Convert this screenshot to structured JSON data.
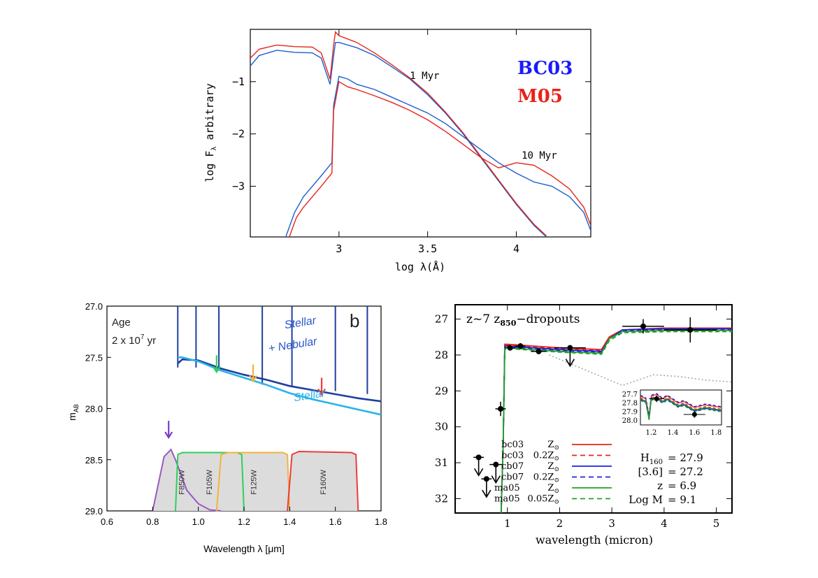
{
  "chart_data": [
    {
      "type": "line",
      "xlabel": "log λ(Å)",
      "ylabel": "log F",
      "ylabel_sub": "λ",
      "ylabel_suffix": " arbitrary",
      "xlim": [
        2.5,
        4.42
      ],
      "ylim": [
        -3.97,
        -0.0
      ],
      "x_ticks": [
        3,
        3.5,
        4
      ],
      "y_ticks": [
        -1,
        -2,
        -3
      ],
      "legend": [
        {
          "label": "BC03",
          "color": "#1a1aff"
        },
        {
          "label": "M05",
          "color": "#e8231a"
        }
      ],
      "annotations": [
        {
          "text": "1 Myr",
          "x": 3.4,
          "y": -0.95
        },
        {
          "text": "10 Myr",
          "x": 4.03,
          "y": -2.47
        }
      ],
      "series": [
        {
          "name": "BC03",
          "age": "1 Myr",
          "color": "#1a5fd0",
          "x": [
            2.5,
            2.55,
            2.65,
            2.75,
            2.85,
            2.9,
            2.95,
            2.97,
            2.98,
            3.0,
            3.1,
            3.2,
            3.3,
            3.4,
            3.5,
            3.6,
            3.7,
            3.8,
            3.9,
            4.0,
            4.1,
            4.17
          ],
          "y": [
            -0.7,
            -0.5,
            -0.4,
            -0.44,
            -0.45,
            -0.55,
            -1.05,
            -0.5,
            -0.25,
            -0.25,
            -0.35,
            -0.5,
            -0.72,
            -0.95,
            -1.25,
            -1.6,
            -2.0,
            -2.45,
            -2.9,
            -3.35,
            -3.75,
            -3.97
          ]
        },
        {
          "name": "M05",
          "age": "1 Myr",
          "color": "#e8231a",
          "x": [
            2.5,
            2.55,
            2.65,
            2.75,
            2.85,
            2.9,
            2.95,
            2.97,
            2.98,
            3.0,
            3.1,
            3.2,
            3.3,
            3.4,
            3.5,
            3.6,
            3.7,
            3.8,
            3.9,
            4.0,
            4.1,
            4.17
          ],
          "y": [
            -0.55,
            -0.38,
            -0.3,
            -0.33,
            -0.34,
            -0.45,
            -0.95,
            -0.3,
            -0.05,
            -0.12,
            -0.25,
            -0.45,
            -0.68,
            -0.93,
            -1.22,
            -1.58,
            -1.98,
            -2.43,
            -2.88,
            -3.33,
            -3.73,
            -3.95
          ]
        },
        {
          "name": "BC03",
          "age": "10 Myr",
          "color": "#1a5fd0",
          "x": [
            2.7,
            2.75,
            2.8,
            2.9,
            2.96,
            2.97,
            3.0,
            3.05,
            3.1,
            3.2,
            3.3,
            3.4,
            3.5,
            3.6,
            3.7,
            3.8,
            3.9,
            4.0,
            4.1,
            4.2,
            4.3,
            4.38,
            4.42
          ],
          "y": [
            -3.97,
            -3.5,
            -3.2,
            -2.8,
            -2.55,
            -1.45,
            -0.9,
            -0.95,
            -1.05,
            -1.15,
            -1.3,
            -1.45,
            -1.6,
            -1.8,
            -2.05,
            -2.3,
            -2.55,
            -2.75,
            -2.92,
            -3.0,
            -3.2,
            -3.5,
            -3.85
          ]
        },
        {
          "name": "M05",
          "age": "10 Myr",
          "color": "#e8231a",
          "x": [
            2.72,
            2.76,
            2.8,
            2.9,
            2.96,
            2.97,
            3.0,
            3.05,
            3.1,
            3.2,
            3.3,
            3.4,
            3.5,
            3.6,
            3.7,
            3.8,
            3.85,
            3.9,
            4.0,
            4.1,
            4.2,
            4.3,
            4.38,
            4.42
          ],
          "y": [
            -3.97,
            -3.6,
            -3.4,
            -3.0,
            -2.75,
            -1.55,
            -1.0,
            -1.1,
            -1.15,
            -1.27,
            -1.4,
            -1.55,
            -1.73,
            -1.95,
            -2.2,
            -2.45,
            -2.55,
            -2.65,
            -2.55,
            -2.6,
            -2.8,
            -3.05,
            -3.4,
            -3.75
          ]
        }
      ]
    },
    {
      "type": "line",
      "xlabel": "Wavelength λ [μm]",
      "ylabel": "m",
      "ylabel_sub": "AB",
      "panel_label": "b",
      "text_lines": [
        "Age",
        "2 x 10",
        "7",
        " yr"
      ],
      "xlim": [
        0.6,
        1.8
      ],
      "ylim": [
        27.0,
        29.0
      ],
      "x_ticks": [
        0.6,
        0.8,
        1.0,
        1.2,
        1.4,
        1.6,
        1.8
      ],
      "y_ticks": [
        27.0,
        27.5,
        28.0,
        28.5,
        29.0
      ],
      "curve_labels": [
        {
          "text": "Stellar",
          "x": 1.38,
          "y": 27.22,
          "color": "#2a55c8"
        },
        {
          "text": "+ Nebular",
          "x": 1.31,
          "y": 27.45,
          "color": "#2a55c8"
        },
        {
          "text": "Stellar",
          "x": 1.42,
          "y": 27.93,
          "color": "#2ab3e8"
        }
      ],
      "series": [
        {
          "name": "Stellar + Nebular",
          "color": "#1f3f9e",
          "x": [
            0.91,
            0.93,
            1.0,
            1.1,
            1.2,
            1.3,
            1.4,
            1.5,
            1.6,
            1.7,
            1.8
          ],
          "y": [
            27.56,
            27.52,
            27.53,
            27.61,
            27.67,
            27.72,
            27.78,
            27.82,
            27.86,
            27.9,
            27.93
          ]
        },
        {
          "name": "Stellar",
          "color": "#2ab3e8",
          "x": [
            0.91,
            0.93,
            1.0,
            1.1,
            1.2,
            1.3,
            1.4,
            1.5,
            1.6,
            1.7,
            1.8
          ],
          "y": [
            27.5,
            27.5,
            27.54,
            27.63,
            27.7,
            27.77,
            27.85,
            27.91,
            27.96,
            28.01,
            28.06
          ]
        }
      ],
      "emission_lines_x": [
        0.91,
        0.99,
        1.09,
        1.28,
        1.41,
        1.6,
        1.74
      ],
      "filters": [
        {
          "label": "F850W",
          "color": "#9b59c6",
          "x": [
            0.8,
            0.85,
            0.88,
            0.9,
            0.95,
            1.0,
            1.05,
            1.1
          ],
          "y": [
            29.0,
            28.47,
            28.4,
            28.5,
            28.8,
            28.93,
            28.99,
            29.0
          ]
        },
        {
          "label": "F105W",
          "color": "#2ed05a",
          "x": [
            0.9,
            0.91,
            0.93,
            1.17,
            1.19,
            1.2
          ],
          "y": [
            29.0,
            28.45,
            28.43,
            28.43,
            28.45,
            29.0
          ]
        },
        {
          "label": "F125W",
          "color": "#f2b33d",
          "x": [
            1.08,
            1.1,
            1.13,
            1.37,
            1.39,
            1.4
          ],
          "y": [
            29.0,
            28.45,
            28.43,
            28.43,
            28.45,
            29.0
          ]
        },
        {
          "label": "F160W",
          "color": "#ee3b3b",
          "x": [
            1.39,
            1.41,
            1.44,
            1.67,
            1.69,
            1.7
          ],
          "y": [
            29.0,
            28.45,
            28.42,
            28.43,
            28.45,
            29.0
          ]
        }
      ],
      "arrows": [
        {
          "x": 0.87,
          "y": 28.27,
          "color": "#7c3cc8"
        },
        {
          "x": 1.08,
          "y": 27.63,
          "color": "#2ed05a"
        },
        {
          "x": 1.24,
          "y": 27.72,
          "color": "#f2b33d"
        },
        {
          "x": 1.54,
          "y": 27.85,
          "color": "#ee3b3b"
        }
      ]
    },
    {
      "type": "scatter",
      "title": "z~7 z",
      "title_sub": "850",
      "title_suffix": "−dropouts",
      "xlabel": "wavelength (micron)",
      "xlim": [
        0,
        5.3
      ],
      "ylim": [
        26.6,
        32.4
      ],
      "x_ticks": [
        1,
        2,
        3,
        4,
        5
      ],
      "y_ticks": [
        27,
        28,
        29,
        30,
        31,
        32
      ],
      "points": [
        {
          "x": 0.45,
          "y": 30.85,
          "xerr": 0.1,
          "upper_limit": true
        },
        {
          "x": 0.6,
          "y": 31.45,
          "xerr": 0.1,
          "upper_limit": true
        },
        {
          "x": 0.78,
          "y": 31.05,
          "xerr": 0.12,
          "upper_limit": true
        },
        {
          "x": 0.87,
          "y": 29.5,
          "xerr": 0.1,
          "yerr": 0.2
        },
        {
          "x": 1.05,
          "y": 27.8,
          "xerr": 0.1,
          "yerr": 0.08
        },
        {
          "x": 1.25,
          "y": 27.75,
          "xerr": 0.1,
          "yerr": 0.08
        },
        {
          "x": 1.6,
          "y": 27.9,
          "xerr": 0.15,
          "yerr": 0.08
        },
        {
          "x": 2.2,
          "y": 27.8,
          "xerr": 0.3,
          "upper_limit": true
        },
        {
          "x": 3.6,
          "y": 27.2,
          "xerr": 0.4,
          "yerr": 0.2
        },
        {
          "x": 4.5,
          "y": 27.3,
          "xerr": 0.5,
          "yerr": 0.35
        }
      ],
      "series": [
        {
          "name": "bc03 Z",
          "color": "#e8231a",
          "dash": false,
          "x": [
            0.88,
            0.92,
            0.95,
            1.0,
            2.0,
            2.8,
            2.95,
            3.2,
            4.0,
            5.3
          ],
          "y": [
            32.4,
            30.5,
            27.7,
            27.7,
            27.8,
            27.85,
            27.5,
            27.3,
            27.25,
            27.25
          ]
        },
        {
          "name": "bc03 0.2Z",
          "color": "#e8231a",
          "dash": true,
          "x": [
            0.88,
            0.92,
            0.95,
            1.0,
            2.0,
            2.8,
            2.95,
            3.2,
            4.0,
            5.3
          ],
          "y": [
            32.4,
            30.5,
            27.75,
            27.72,
            27.82,
            27.88,
            27.5,
            27.3,
            27.28,
            27.28
          ]
        },
        {
          "name": "cb07 Z",
          "color": "#2020e0",
          "dash": false,
          "x": [
            0.88,
            0.92,
            0.95,
            1.0,
            2.0,
            2.8,
            2.95,
            3.2,
            4.0,
            5.3
          ],
          "y": [
            32.4,
            30.5,
            27.75,
            27.75,
            27.85,
            27.9,
            27.55,
            27.3,
            27.27,
            27.27
          ]
        },
        {
          "name": "cb07 0.2Z",
          "color": "#2020e0",
          "dash": true,
          "x": [
            0.88,
            0.92,
            0.95,
            1.0,
            2.0,
            2.8,
            2.95,
            3.2,
            4.0,
            5.3
          ],
          "y": [
            32.4,
            30.5,
            27.8,
            27.78,
            27.88,
            27.92,
            27.55,
            27.32,
            27.3,
            27.3
          ]
        },
        {
          "name": "ma05 Z",
          "color": "#22a02a",
          "dash": false,
          "x": [
            0.88,
            0.92,
            0.95,
            1.0,
            2.0,
            2.8,
            2.95,
            3.2,
            4.0,
            5.3
          ],
          "y": [
            32.4,
            30.5,
            27.8,
            27.8,
            27.9,
            27.95,
            27.55,
            27.35,
            27.32,
            27.32
          ]
        },
        {
          "name": "ma05 0.05Z",
          "color": "#22a02a",
          "dash": true,
          "x": [
            0.88,
            0.92,
            0.95,
            1.0,
            2.0,
            2.8,
            2.95,
            3.2,
            4.0,
            5.3
          ],
          "y": [
            32.4,
            30.5,
            27.85,
            27.82,
            27.92,
            27.98,
            27.6,
            27.38,
            27.35,
            27.35
          ]
        },
        {
          "name": "",
          "color": "#aaaaaa",
          "dash": "dot",
          "x": [
            1.8,
            2.3,
            2.8,
            3.2,
            3.8,
            4.3,
            4.8,
            5.3
          ],
          "y": [
            28.0,
            28.3,
            28.6,
            28.85,
            28.55,
            28.6,
            28.7,
            28.75
          ]
        }
      ],
      "legend_entries": [
        {
          "model": "bc03",
          "z": "Z",
          "sub": "⊙",
          "color": "#e8231a",
          "dash": false
        },
        {
          "model": "bc03",
          "z": "0.2Z",
          "sub": "⊙",
          "color": "#e8231a",
          "dash": true
        },
        {
          "model": "cb07",
          "z": "Z",
          "sub": "⊙",
          "color": "#2020e0",
          "dash": false
        },
        {
          "model": "cb07",
          "z": "0.2Z",
          "sub": "⊙",
          "color": "#2020e0",
          "dash": true
        },
        {
          "model": "ma05",
          "z": "Z",
          "sub": "⊙",
          "color": "#22a02a",
          "dash": false
        },
        {
          "model": "ma05",
          "z": "0.05Z",
          "sub": "⊙",
          "color": "#22a02a",
          "dash": true
        }
      ],
      "stats": [
        {
          "label": "H",
          "sub": "160",
          "value": "= 27.9"
        },
        {
          "label": "[3.6]",
          "sub": "",
          "value": "= 27.2"
        },
        {
          "label": "z",
          "sub": "",
          "value": "= 6.9"
        },
        {
          "label": "Log M",
          "sub": "",
          "value": "= 9.1"
        }
      ],
      "inset": {
        "xlim": [
          1.1,
          1.85
        ],
        "ylim": [
          27.65,
          28.05
        ],
        "x_ticks": [
          1.2,
          1.4,
          1.6,
          1.8
        ],
        "y_ticks": [
          27.7,
          27.8,
          27.9,
          28.0
        ],
        "points": [
          {
            "x": 1.25,
            "y": 27.75,
            "xerr": 0.07,
            "yerr": 0.04
          },
          {
            "x": 1.6,
            "y": 27.93,
            "xerr": 0.1,
            "yerr": 0.04
          }
        ]
      }
    }
  ]
}
